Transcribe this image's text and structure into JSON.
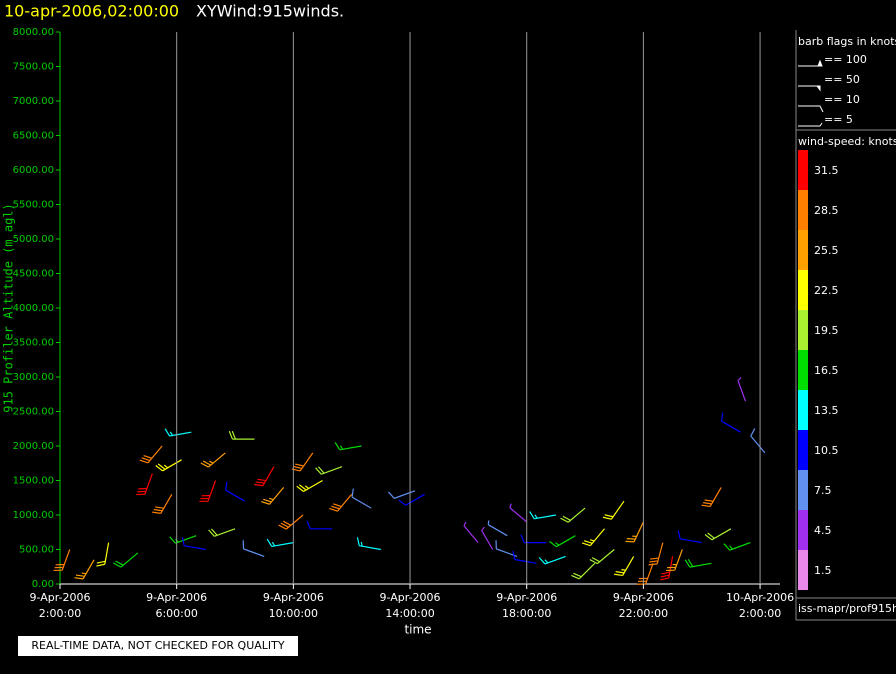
{
  "chart_data": {
    "type": "windbarb",
    "title": "10-apr-2006,02:00:00",
    "subtitle": "XYWind:915winds.",
    "y_label": "915 Profiler Altitude (m agl)",
    "x_label": "time",
    "footer": "REAL-TIME DATA, NOT CHECKED FOR QUALITY",
    "source": "iss-mapr/prof915h",
    "grid": true,
    "xlim": [
      "2006-04-09T02:00",
      "2006-04-10T02:41"
    ],
    "xticks": [
      {
        "value": "2006-04-09T02:00",
        "label": [
          "9-Apr-2006",
          "2:00:00"
        ]
      },
      {
        "value": "2006-04-09T06:00",
        "label": [
          "9-Apr-2006",
          "6:00:00"
        ]
      },
      {
        "value": "2006-04-09T10:00",
        "label": [
          "9-Apr-2006",
          "10:00:00"
        ]
      },
      {
        "value": "2006-04-09T14:00",
        "label": [
          "9-Apr-2006",
          "14:00:00"
        ]
      },
      {
        "value": "2006-04-09T18:00",
        "label": [
          "9-Apr-2006",
          "18:00:00"
        ]
      },
      {
        "value": "2006-04-09T22:00",
        "label": [
          "9-Apr-2006",
          "22:00:00"
        ]
      },
      {
        "value": "2006-04-10T02:00",
        "label": [
          "10-Apr-2006",
          "2:00:00"
        ]
      }
    ],
    "ylim": [
      0,
      8000
    ],
    "yticks": [
      {
        "value": 0,
        "label": "0.00"
      },
      {
        "value": 500,
        "label": "500.00"
      },
      {
        "value": 1000,
        "label": "1000.00"
      },
      {
        "value": 1500,
        "label": "1500.00"
      },
      {
        "value": 2000,
        "label": "2000.00"
      },
      {
        "value": 2500,
        "label": "2500.00"
      },
      {
        "value": 3000,
        "label": "3000.00"
      },
      {
        "value": 3500,
        "label": "3500.00"
      },
      {
        "value": 4000,
        "label": "4000.00"
      },
      {
        "value": 4500,
        "label": "4500.00"
      },
      {
        "value": 5000,
        "label": "5000.00"
      },
      {
        "value": 5500,
        "label": "5500.00"
      },
      {
        "value": 6000,
        "label": "6000.00"
      },
      {
        "value": 6500,
        "label": "6500.00"
      },
      {
        "value": 7000,
        "label": "7000.00"
      },
      {
        "value": 7500,
        "label": "7500.00"
      },
      {
        "value": 8000,
        "label": "8000.00"
      }
    ],
    "barb_legend": {
      "title": "barb flags in knots",
      "items": [
        "== 100",
        "== 50",
        "== 10",
        "== 5"
      ]
    },
    "colorbar": {
      "title": "wind-speed: knots",
      "values": [
        1.5,
        4.5,
        7.5,
        10.5,
        13.5,
        16.5,
        19.5,
        22.5,
        25.5,
        28.5,
        31.5
      ],
      "colors": [
        "#e888e8",
        "#a030f0",
        "#6090f0",
        "#0000ff",
        "#00ffff",
        "#00dd00",
        "#a8f030",
        "#ffff00",
        "#ffa000",
        "#ff8000",
        "#ff0000"
      ]
    },
    "barbs": {
      "x": [
        "2006-04-09T02:20",
        "2006-04-09T03:10",
        "2006-04-09T03:40",
        "2006-04-09T04:40",
        "2006-04-09T05:10",
        "2006-04-09T05:30",
        "2006-04-09T05:50",
        "2006-04-09T06:10",
        "2006-04-09T06:30",
        "2006-04-09T06:40",
        "2006-04-09T07:00",
        "2006-04-09T07:20",
        "2006-04-09T07:40",
        "2006-04-09T08:00",
        "2006-04-09T08:20",
        "2006-04-09T08:40",
        "2006-04-09T09:00",
        "2006-04-09T09:20",
        "2006-04-09T09:40",
        "2006-04-09T10:00",
        "2006-04-09T10:20",
        "2006-04-09T10:40",
        "2006-04-09T11:00",
        "2006-04-09T11:20",
        "2006-04-09T11:40",
        "2006-04-09T12:00",
        "2006-04-09T12:20",
        "2006-04-09T12:40",
        "2006-04-09T13:00",
        "2006-04-09T14:10",
        "2006-04-09T14:30",
        "2006-04-09T16:20",
        "2006-04-09T16:50",
        "2006-04-09T17:20",
        "2006-04-09T17:40",
        "2006-04-09T18:00",
        "2006-04-09T18:20",
        "2006-04-09T18:40",
        "2006-04-09T19:00",
        "2006-04-09T19:20",
        "2006-04-09T19:40",
        "2006-04-09T20:00",
        "2006-04-09T20:20",
        "2006-04-09T20:40",
        "2006-04-09T21:00",
        "2006-04-09T21:20",
        "2006-04-09T21:40",
        "2006-04-09T22:00",
        "2006-04-09T22:20",
        "2006-04-09T22:40",
        "2006-04-09T23:00",
        "2006-04-09T23:20",
        "2006-04-10T00:00",
        "2006-04-10T00:20",
        "2006-04-10T00:40",
        "2006-04-10T01:00",
        "2006-04-10T01:20",
        "2006-04-10T01:40",
        "2006-04-10T02:10",
        "2006-04-10T01:30"
      ],
      "altitude": [
        500,
        350,
        600,
        450,
        1600,
        2000,
        1300,
        1800,
        2200,
        700,
        500,
        1500,
        1900,
        800,
        1200,
        2100,
        400,
        1700,
        1400,
        600,
        1000,
        1900,
        1500,
        800,
        1700,
        1300,
        2000,
        1100,
        500,
        1350,
        1300,
        600,
        500,
        700,
        400,
        900,
        300,
        600,
        1000,
        400,
        700,
        1100,
        300,
        800,
        500,
        1200,
        400,
        900,
        300,
        600,
        400,
        500,
        600,
        300,
        1400,
        800,
        2200,
        600,
        1900,
        2650
      ],
      "speed": [
        30,
        27,
        22,
        18,
        31,
        29,
        30,
        24,
        14,
        17,
        12,
        31,
        27,
        20,
        10,
        19,
        9,
        32,
        26,
        13,
        28,
        30,
        23,
        11,
        21,
        29,
        17,
        8,
        14,
        9,
        11,
        5,
        4,
        7,
        9,
        6,
        10,
        12,
        15,
        14,
        17,
        19,
        21,
        23,
        20,
        22,
        24,
        25,
        28,
        30,
        31,
        27,
        12,
        18,
        29,
        21,
        10,
        16,
        8,
        6
      ],
      "direction": [
        200,
        210,
        190,
        230,
        200,
        220,
        210,
        240,
        260,
        250,
        280,
        200,
        230,
        250,
        300,
        270,
        290,
        210,
        220,
        260,
        230,
        215,
        240,
        270,
        250,
        220,
        260,
        300,
        280,
        250,
        240,
        320,
        330,
        300,
        290,
        310,
        280,
        270,
        260,
        250,
        240,
        230,
        225,
        220,
        230,
        215,
        210,
        205,
        200,
        195,
        190,
        200,
        280,
        260,
        210,
        240,
        300,
        250,
        320,
        340
      ]
    }
  }
}
